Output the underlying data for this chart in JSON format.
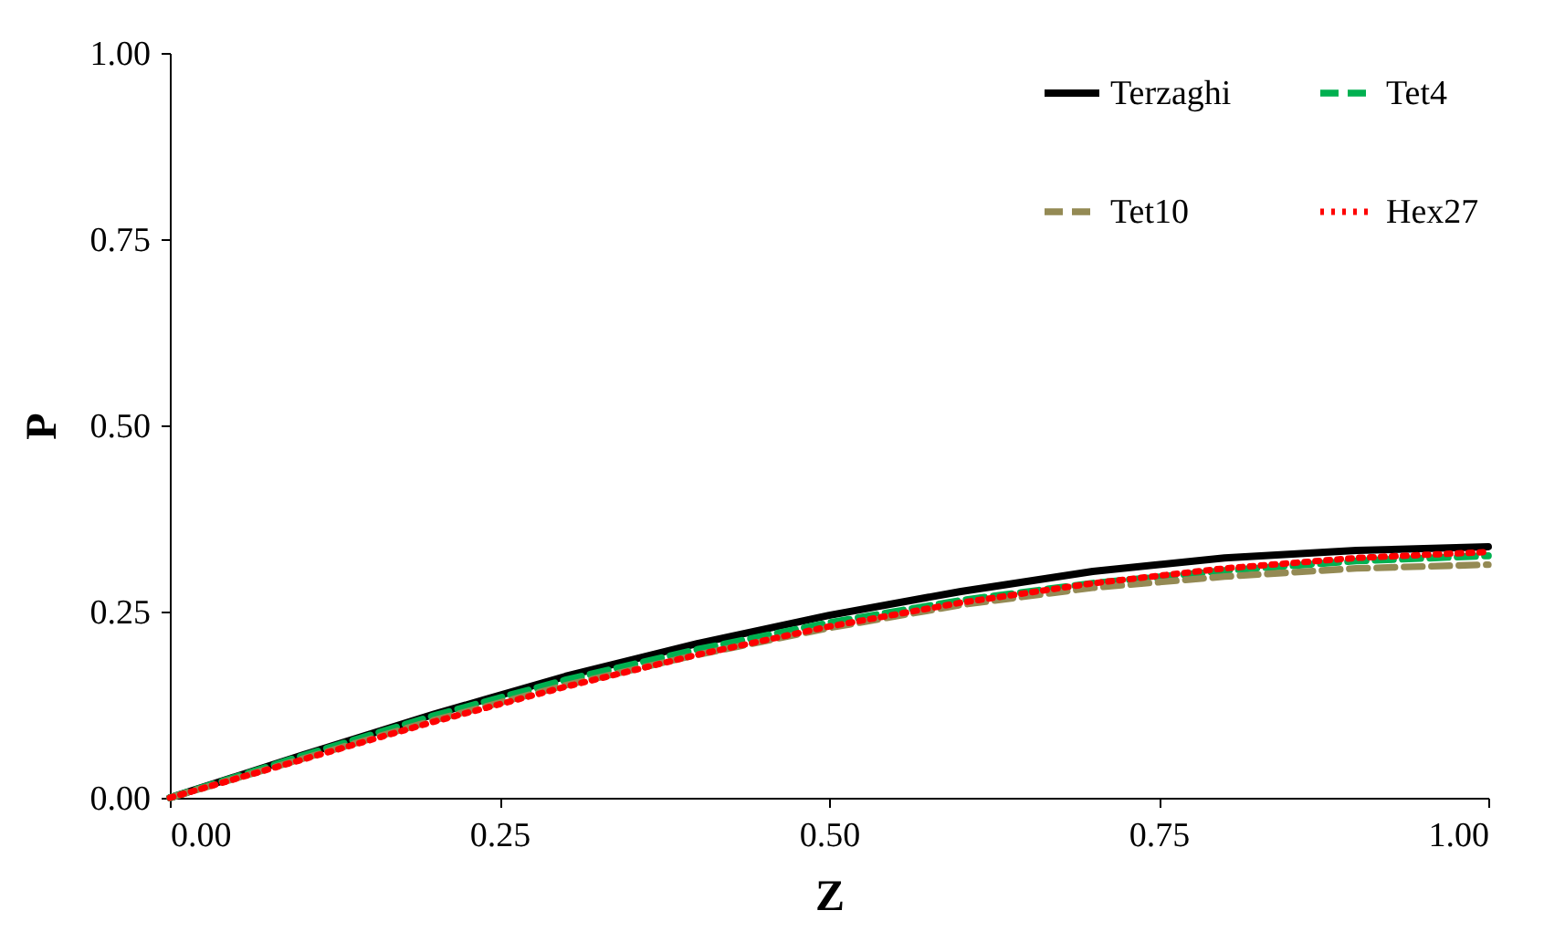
{
  "chart_data": {
    "type": "line",
    "xlabel": "Z",
    "ylabel": "P",
    "x": [
      0,
      0.1,
      0.2,
      0.3,
      0.4,
      0.5,
      0.6,
      0.7,
      0.8,
      0.9,
      1.0
    ],
    "xlim": [
      0,
      1
    ],
    "ylim": [
      0,
      1
    ],
    "xticks": [
      {
        "value": 0,
        "label": "0.00"
      },
      {
        "value": 0.25,
        "label": "0.25"
      },
      {
        "value": 0.5,
        "label": "0.50"
      },
      {
        "value": 0.75,
        "label": "0.75"
      },
      {
        "value": 1,
        "label": "1.00"
      }
    ],
    "yticks": [
      {
        "value": 0,
        "label": "0.00"
      },
      {
        "value": 0.25,
        "label": "0.25"
      },
      {
        "value": 0.5,
        "label": "0.50"
      },
      {
        "value": 0.75,
        "label": "0.75"
      },
      {
        "value": 1,
        "label": "1.00"
      }
    ],
    "grid": false,
    "legend": "top right",
    "marker": "none",
    "series": [
      {
        "name": "Terzaghi",
        "color": "#000000",
        "line_style": "solid",
        "values": [
          0,
          0.057,
          0.112,
          0.163,
          0.207,
          0.245,
          0.277,
          0.304,
          0.322,
          0.332,
          0.337
        ]
      },
      {
        "name": "Tet4",
        "color": "#00b050",
        "line_style": "dashed",
        "values": [
          0,
          0.056,
          0.11,
          0.158,
          0.199,
          0.235,
          0.265,
          0.288,
          0.305,
          0.318,
          0.325
        ]
      },
      {
        "name": "Tet10",
        "color": "#948a54",
        "line_style": "dashed",
        "values": [
          0,
          0.052,
          0.104,
          0.151,
          0.192,
          0.228,
          0.259,
          0.282,
          0.297,
          0.308,
          0.313
        ]
      },
      {
        "name": "Hex27",
        "color": "#ff0000",
        "line_style": "dotted",
        "values": [
          0,
          0.051,
          0.102,
          0.149,
          0.192,
          0.23,
          0.262,
          0.288,
          0.308,
          0.322,
          0.33
        ]
      }
    ]
  }
}
